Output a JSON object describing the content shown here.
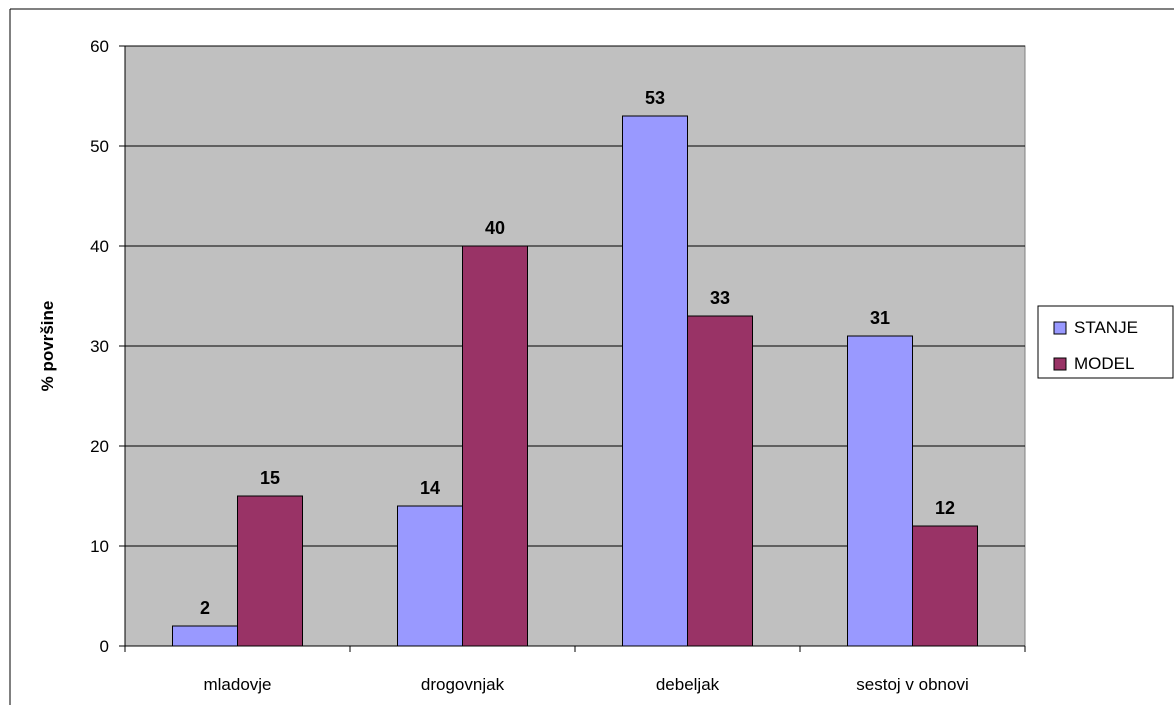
{
  "chart_data": {
    "type": "bar",
    "title": "",
    "xlabel": "",
    "ylabel": "% površine",
    "categories": [
      "mladovje",
      "drogovnjak",
      "debeljak",
      "sestoj v obnovi"
    ],
    "series": [
      {
        "name": "STANJE",
        "values": [
          2,
          14,
          53,
          31
        ],
        "color": "#9999ff"
      },
      {
        "name": "MODEL",
        "values": [
          15,
          40,
          33,
          12
        ],
        "color": "#993366"
      }
    ],
    "data_labels": [
      [
        "2",
        "14",
        "53",
        "31"
      ],
      [
        "15",
        "40",
        "33",
        "12"
      ]
    ],
    "ylim": [
      0,
      60
    ],
    "yticks": [
      0,
      10,
      20,
      30,
      40,
      50,
      60
    ],
    "grid": true,
    "plot_background": "#c0c0c0",
    "legend_position": "right"
  }
}
